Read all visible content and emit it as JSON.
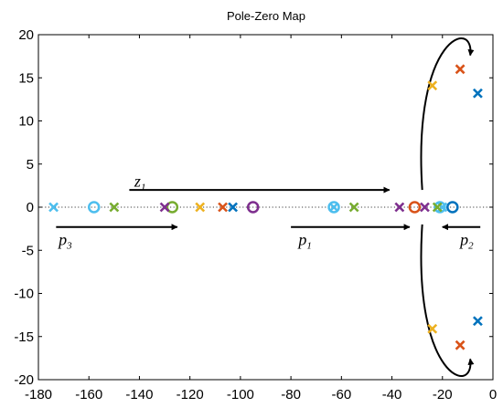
{
  "chart_data": {
    "type": "scatter",
    "title": "Pole-Zero Map",
    "xlim": [
      -180,
      0
    ],
    "ylim": [
      -20,
      20
    ],
    "xticks": [
      -180,
      -160,
      -140,
      -120,
      -100,
      -80,
      -60,
      -40,
      -20,
      0
    ],
    "yticks": [
      -20,
      -15,
      -10,
      -5,
      0,
      5,
      10,
      15,
      20
    ],
    "grid": false,
    "zero_line": "dotted",
    "series": [
      {
        "color": "#4DBEEE",
        "poles": [
          [
            -174,
            0
          ],
          [
            -63,
            0
          ],
          [
            -20,
            0
          ]
        ],
        "zeros": [
          [
            -158,
            0
          ],
          [
            -63,
            0
          ],
          [
            -21,
            0
          ]
        ]
      },
      {
        "color": "#77AC30",
        "poles": [
          [
            -150,
            0
          ],
          [
            -55,
            0
          ],
          [
            -22,
            0
          ]
        ],
        "zeros": [
          [
            -127,
            0
          ]
        ]
      },
      {
        "color": "#7E2F8E",
        "poles": [
          [
            -130,
            0
          ],
          [
            -37,
            0
          ],
          [
            -27,
            0
          ]
        ],
        "zeros": [
          [
            -95,
            0
          ]
        ]
      },
      {
        "color": "#EDB120",
        "poles": [
          [
            -116,
            0
          ],
          [
            -24,
            14.1
          ],
          [
            -24,
            -14.1
          ]
        ],
        "zeros": []
      },
      {
        "color": "#D95319",
        "poles": [
          [
            -107,
            0
          ],
          [
            -13,
            16
          ],
          [
            -13,
            -16
          ]
        ],
        "zeros": [
          [
            -31,
            0
          ]
        ]
      },
      {
        "color": "#0072BD",
        "poles": [
          [
            -103,
            0
          ],
          [
            -6,
            13.2
          ],
          [
            -6,
            -13.2
          ]
        ],
        "zeros": [
          [
            -16,
            0
          ]
        ]
      }
    ],
    "annotations": [
      {
        "label": "z",
        "sub": "1",
        "x": -142,
        "y": 2.4
      },
      {
        "label": "p",
        "sub": "3",
        "x": -172,
        "y": -4.4
      },
      {
        "label": "p",
        "sub": "1",
        "x": -77,
        "y": -4.4
      },
      {
        "label": "p",
        "sub": "2",
        "x": -13,
        "y": -4.4
      }
    ],
    "arrows": [
      {
        "from": [
          -144,
          2
        ],
        "to": [
          -41,
          2
        ]
      },
      {
        "from": [
          -173,
          -2.3
        ],
        "to": [
          -125,
          -2.3
        ]
      },
      {
        "from": [
          -80,
          -2.3
        ],
        "to": [
          -33,
          -2.3
        ]
      },
      {
        "from": [
          -5,
          -2.3
        ],
        "to": [
          -20,
          -2.3
        ]
      }
    ],
    "curved_arrows": [
      {
        "path": [
          [
            -28,
            2
          ],
          [
            -32,
            20
          ],
          [
            -7,
            22
          ],
          [
            -9,
            17.6
          ]
        ]
      },
      {
        "path": [
          [
            -28,
            -2
          ],
          [
            -32,
            -20
          ],
          [
            -7,
            -22
          ],
          [
            -9,
            -17.6
          ]
        ]
      }
    ]
  }
}
